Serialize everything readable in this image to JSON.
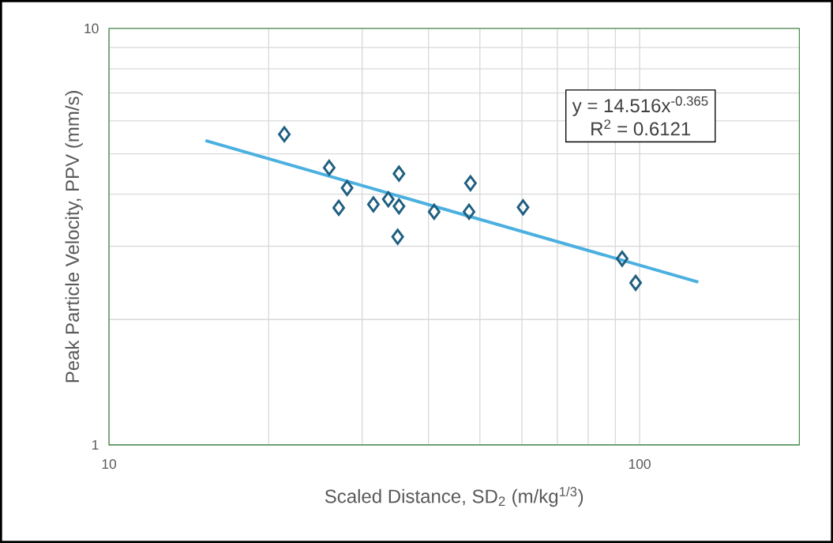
{
  "chart_data": {
    "type": "scatter",
    "xlabel": "Scaled Distance, SD$_{2}$ (m/kg$^{1/3}$)",
    "ylabel": "Peak Particle Velocity, PPV (mm/s)",
    "log": "xy",
    "xlim": [
      10,
      200
    ],
    "ylim": [
      1,
      10
    ],
    "xticks": [
      10,
      100
    ],
    "yticks": [
      1,
      10
    ],
    "grid": true,
    "series": [
      {
        "color": "#1f5f80",
        "marker": "diamond",
        "x": [
          21.4,
          26.0,
          28.1,
          27.1,
          31.5,
          33.6,
          35.2,
          35.2,
          35.0,
          41.0,
          47.7,
          48.0,
          60.3,
          92.7,
          98.3
        ],
        "values": [
          5.57,
          4.63,
          4.14,
          3.71,
          3.78,
          3.89,
          4.48,
          3.74,
          3.16,
          3.63,
          3.63,
          4.25,
          3.72,
          2.8,
          2.45
        ]
      },
      {
        "type": "line",
        "color": "#4bb0e0",
        "x": [
          15.2,
          129
        ],
        "values": [
          5.38,
          2.46
        ]
      }
    ],
    "annotations": [
      "y = 14.516x$^{-0.365}$",
      "R$^{2}$ = 0.6121"
    ]
  }
}
